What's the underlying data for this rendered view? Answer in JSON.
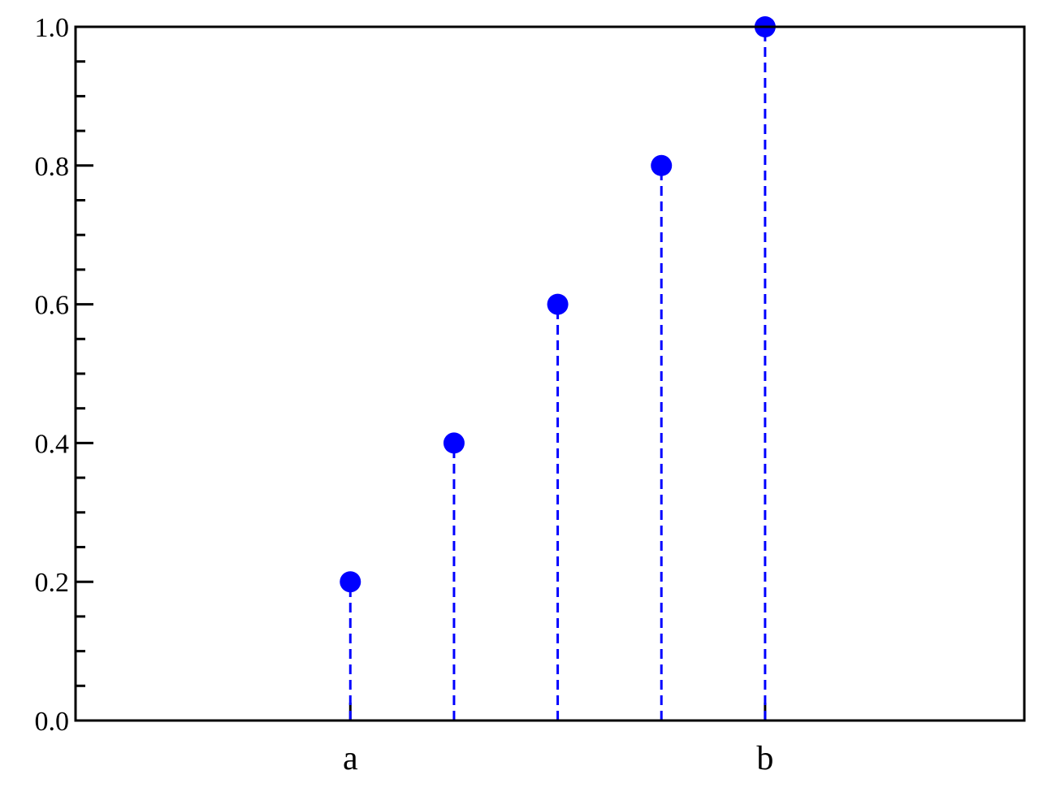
{
  "chart_data": {
    "type": "scatter",
    "style": "stem",
    "title": "",
    "xlabel": "",
    "ylabel": "",
    "x_tick_labels": [
      {
        "x": 1,
        "label": "a"
      },
      {
        "x": 5,
        "label": "b"
      }
    ],
    "y_ticks": [
      0.0,
      0.2,
      0.4,
      0.6,
      0.8,
      1.0
    ],
    "y_tick_labels": [
      "0.0",
      "0.2",
      "0.4",
      "0.6",
      "0.8",
      "1.0"
    ],
    "y_minor_step": 0.05,
    "xlim": [
      -1.65,
      7.5
    ],
    "ylim": [
      0,
      1
    ],
    "grid": false,
    "legend": "none",
    "series": [
      {
        "x": [
          1,
          2,
          3,
          4,
          5
        ],
        "y": [
          0.2,
          0.4,
          0.6,
          0.8,
          1.0
        ],
        "color": "#0000ff",
        "stem_line": "dashed"
      }
    ]
  }
}
